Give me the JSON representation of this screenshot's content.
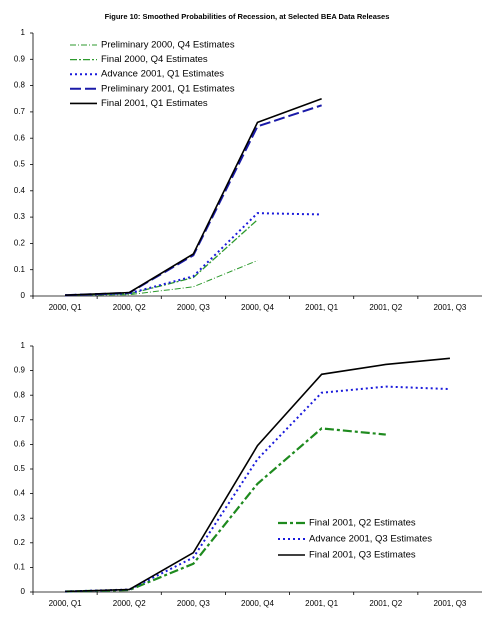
{
  "chart_data": [
    {
      "type": "line",
      "title": "Figure 10: Smoothed Probabilities of Recession, at Selected BEA Data Releases",
      "categories": [
        "2000, Q1",
        "2000, Q2",
        "2000, Q3",
        "2000, Q4",
        "2001, Q1",
        "2001, Q2",
        "2001, Q3"
      ],
      "ylim": [
        0,
        1
      ],
      "yticks": [
        0,
        0.1,
        0.2,
        0.3,
        0.4,
        0.5,
        0.6,
        0.7,
        0.8,
        0.9,
        1
      ],
      "legend": "upper left",
      "series": [
        {
          "name": "Preliminary 2000, Q4 Estimates",
          "color": "#2e9a2e",
          "style": "dashdot-thin",
          "values": [
            0.003,
            0.005,
            0.035,
            0.135,
            null,
            null,
            null
          ]
        },
        {
          "name": "Final 2000, Q4 Estimates",
          "color": "#2e9a2e",
          "style": "dashdot",
          "values": [
            0.003,
            0.008,
            0.07,
            0.29,
            null,
            null,
            null
          ]
        },
        {
          "name": "Advance 2001, Q1 Estimates",
          "color": "#1a1adb",
          "style": "dot",
          "values": [
            0.003,
            0.01,
            0.075,
            0.315,
            0.31,
            null,
            null
          ]
        },
        {
          "name": "Preliminary 2001, Q1 Estimates",
          "color": "#1a1aa8",
          "style": "longdash",
          "values": [
            0.003,
            0.012,
            0.155,
            0.645,
            0.725,
            null,
            null
          ]
        },
        {
          "name": "Final 2001, Q1 Estimates",
          "color": "#000000",
          "style": "solid",
          "values": [
            0.003,
            0.013,
            0.16,
            0.66,
            0.75,
            null,
            null
          ]
        }
      ]
    },
    {
      "type": "line",
      "categories": [
        "2000, Q1",
        "2000, Q2",
        "2000, Q3",
        "2000, Q4",
        "2001, Q1",
        "2001, Q2",
        "2001, Q3"
      ],
      "ylim": [
        0,
        1
      ],
      "yticks": [
        0,
        0.1,
        0.2,
        0.3,
        0.4,
        0.5,
        0.6,
        0.7,
        0.8,
        0.9,
        1
      ],
      "legend": "lower right",
      "series": [
        {
          "name": "Final 2001, Q2 Estimates",
          "color": "#1e8a1e",
          "style": "dash-thick",
          "values": [
            0.002,
            0.008,
            0.115,
            0.44,
            0.665,
            0.64,
            null
          ]
        },
        {
          "name": "Advance 2001, Q3 Estimates",
          "color": "#1a1adb",
          "style": "dot",
          "values": [
            0.002,
            0.01,
            0.14,
            0.54,
            0.81,
            0.835,
            0.825
          ]
        },
        {
          "name": "Final 2001, Q3 Estimates",
          "color": "#000000",
          "style": "solid",
          "values": [
            0.002,
            0.01,
            0.16,
            0.595,
            0.885,
            0.925,
            0.95
          ]
        }
      ]
    }
  ]
}
